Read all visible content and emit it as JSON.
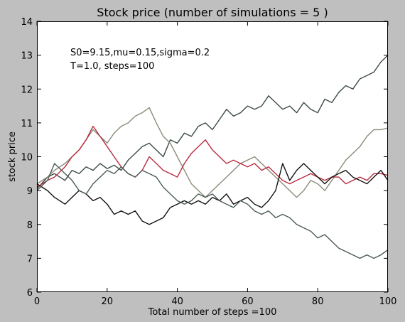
{
  "chart_data": {
    "type": "line",
    "title": "Stock price (number of simulations = 5 )",
    "xlabel": "Total number of steps =100",
    "ylabel": "stock price",
    "xlim": [
      0,
      100
    ],
    "ylim": [
      6,
      14
    ],
    "xticks": [
      0,
      20,
      40,
      60,
      80,
      100
    ],
    "yticks": [
      6,
      7,
      8,
      9,
      10,
      11,
      12,
      13,
      14
    ],
    "grid": false,
    "annotations": [
      "S0=9.15,mu=0.15,sigma=0.2",
      "T=1.0, steps=100"
    ],
    "series": [
      {
        "color": "#3b4a45",
        "x": [
          0,
          3,
          5,
          8,
          10,
          12,
          14,
          16,
          18,
          20,
          22,
          24,
          26,
          28,
          30,
          32,
          34,
          36,
          38,
          40,
          42,
          44,
          46,
          48,
          50,
          52,
          54,
          56,
          58,
          60,
          62,
          64,
          66,
          68,
          70,
          72,
          74,
          76,
          78,
          80,
          82,
          84,
          86,
          88,
          90,
          92,
          94,
          96,
          98,
          100
        ],
        "values": [
          9.05,
          9.4,
          9.5,
          9.3,
          9.6,
          9.5,
          9.7,
          9.6,
          9.8,
          9.65,
          9.75,
          9.6,
          9.9,
          10.1,
          10.3,
          10.4,
          10.2,
          10.0,
          10.5,
          10.4,
          10.7,
          10.6,
          10.9,
          11.0,
          10.8,
          11.1,
          11.4,
          11.2,
          11.3,
          11.5,
          11.4,
          11.5,
          11.8,
          11.6,
          11.4,
          11.5,
          11.3,
          11.6,
          11.4,
          11.3,
          11.7,
          11.6,
          11.9,
          12.1,
          12.0,
          12.3,
          12.4,
          12.5,
          12.8,
          13.0
        ]
      },
      {
        "color": "#8a8a7a",
        "x": [
          0,
          3,
          5,
          8,
          10,
          12,
          14,
          16,
          18,
          20,
          22,
          24,
          26,
          28,
          30,
          32,
          34,
          36,
          38,
          40,
          42,
          44,
          46,
          48,
          50,
          52,
          54,
          56,
          58,
          60,
          62,
          64,
          66,
          68,
          70,
          72,
          74,
          76,
          78,
          80,
          82,
          84,
          86,
          88,
          90,
          92,
          94,
          96,
          98,
          100
        ],
        "values": [
          9.2,
          9.4,
          9.6,
          9.8,
          10.0,
          10.2,
          10.5,
          10.8,
          10.6,
          10.4,
          10.7,
          10.9,
          11.0,
          11.2,
          11.3,
          11.45,
          11.0,
          10.6,
          10.4,
          10.0,
          9.6,
          9.2,
          9.0,
          8.8,
          9.0,
          9.2,
          9.4,
          9.6,
          9.8,
          9.9,
          10.0,
          9.8,
          9.6,
          9.4,
          9.2,
          9.0,
          8.8,
          9.0,
          9.3,
          9.2,
          9.0,
          9.3,
          9.6,
          9.9,
          10.1,
          10.3,
          10.6,
          10.8,
          10.8,
          10.85
        ]
      },
      {
        "color": "#b82c3e",
        "x": [
          0,
          3,
          5,
          8,
          10,
          12,
          14,
          16,
          18,
          20,
          22,
          24,
          26,
          28,
          30,
          32,
          34,
          36,
          38,
          40,
          42,
          44,
          46,
          48,
          50,
          52,
          54,
          56,
          58,
          60,
          62,
          64,
          66,
          68,
          70,
          72,
          74,
          76,
          78,
          80,
          82,
          84,
          86,
          88,
          90,
          92,
          94,
          96,
          98,
          100
        ],
        "values": [
          9.1,
          9.3,
          9.4,
          9.7,
          10.0,
          10.2,
          10.5,
          10.9,
          10.6,
          10.3,
          10.0,
          9.7,
          9.5,
          9.4,
          9.6,
          10.0,
          9.8,
          9.6,
          9.5,
          9.4,
          9.8,
          10.1,
          10.3,
          10.5,
          10.2,
          10.0,
          9.8,
          9.9,
          9.8,
          9.7,
          9.8,
          9.6,
          9.7,
          9.5,
          9.3,
          9.2,
          9.3,
          9.4,
          9.5,
          9.4,
          9.3,
          9.4,
          9.4,
          9.2,
          9.3,
          9.4,
          9.3,
          9.5,
          9.5,
          9.45
        ]
      },
      {
        "color": "#111111",
        "x": [
          0,
          3,
          5,
          8,
          10,
          12,
          14,
          16,
          18,
          20,
          22,
          24,
          26,
          28,
          30,
          32,
          34,
          36,
          38,
          40,
          42,
          44,
          46,
          48,
          50,
          52,
          54,
          56,
          58,
          60,
          62,
          64,
          66,
          68,
          70,
          72,
          74,
          76,
          78,
          80,
          82,
          84,
          86,
          88,
          90,
          92,
          94,
          96,
          98,
          100
        ],
        "values": [
          9.2,
          9.0,
          8.8,
          8.6,
          8.8,
          9.0,
          8.9,
          8.7,
          8.8,
          8.6,
          8.3,
          8.4,
          8.3,
          8.4,
          8.1,
          8.0,
          8.1,
          8.2,
          8.5,
          8.6,
          8.7,
          8.6,
          8.7,
          8.6,
          8.8,
          8.7,
          8.9,
          8.6,
          8.7,
          8.8,
          8.6,
          8.5,
          8.7,
          9.0,
          9.8,
          9.3,
          9.6,
          9.8,
          9.6,
          9.4,
          9.2,
          9.4,
          9.5,
          9.6,
          9.4,
          9.3,
          9.2,
          9.4,
          9.6,
          9.3
        ]
      },
      {
        "color": "#4a5a55",
        "x": [
          0,
          3,
          5,
          8,
          10,
          12,
          14,
          16,
          18,
          20,
          22,
          24,
          26,
          28,
          30,
          32,
          34,
          36,
          38,
          40,
          42,
          44,
          46,
          48,
          50,
          52,
          54,
          56,
          58,
          60,
          62,
          64,
          66,
          68,
          70,
          72,
          74,
          76,
          78,
          80,
          82,
          84,
          86,
          88,
          90,
          92,
          94,
          96,
          98,
          100
        ],
        "values": [
          9.0,
          9.3,
          9.8,
          9.5,
          9.3,
          9.0,
          8.9,
          9.2,
          9.4,
          9.6,
          9.5,
          9.7,
          9.5,
          9.4,
          9.6,
          9.5,
          9.4,
          9.1,
          8.9,
          8.7,
          8.6,
          8.7,
          8.9,
          8.8,
          8.9,
          8.7,
          8.6,
          8.5,
          8.7,
          8.6,
          8.4,
          8.3,
          8.4,
          8.2,
          8.3,
          8.2,
          8.0,
          7.9,
          7.8,
          7.6,
          7.7,
          7.5,
          7.3,
          7.2,
          7.1,
          7.0,
          7.1,
          7.0,
          7.1,
          7.25
        ]
      }
    ]
  }
}
